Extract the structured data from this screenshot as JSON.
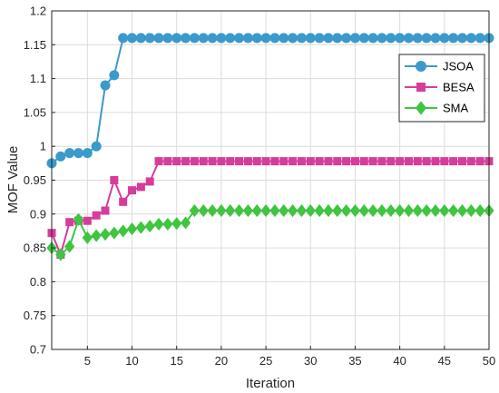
{
  "chart_data": {
    "type": "line",
    "xlabel": "Iteration",
    "ylabel": "MOF Value",
    "xlim": [
      1,
      50
    ],
    "ylim": [
      0.7,
      1.2
    ],
    "xticks": [
      5,
      10,
      15,
      20,
      25,
      30,
      35,
      40,
      45,
      50
    ],
    "yticks": [
      0.7,
      0.75,
      0.8,
      0.85,
      0.9,
      0.95,
      1,
      1.05,
      1.1,
      1.15,
      1.2
    ],
    "ytick_labels": [
      "0.7",
      "0.75",
      "0.8",
      "0.85",
      "0.9",
      "0.95",
      "1",
      "1.05",
      "1.1",
      "1.15",
      "1.2"
    ],
    "xtick_labels": [
      "5",
      "10",
      "15",
      "20",
      "25",
      "30",
      "35",
      "40",
      "45",
      "50"
    ],
    "grid": true,
    "legend_position": "top-right",
    "x": [
      1,
      2,
      3,
      4,
      5,
      6,
      7,
      8,
      9,
      10,
      11,
      12,
      13,
      14,
      15,
      16,
      17,
      18,
      19,
      20,
      21,
      22,
      23,
      24,
      25,
      26,
      27,
      28,
      29,
      30,
      31,
      32,
      33,
      34,
      35,
      36,
      37,
      38,
      39,
      40,
      41,
      42,
      43,
      44,
      45,
      46,
      47,
      48,
      49,
      50
    ],
    "series": [
      {
        "name": "JSOA",
        "color": "#3a9acb",
        "marker": "circle",
        "values": [
          0.975,
          0.985,
          0.99,
          0.99,
          0.99,
          1.0,
          1.09,
          1.105,
          1.16,
          1.16,
          1.16,
          1.16,
          1.16,
          1.16,
          1.16,
          1.16,
          1.16,
          1.16,
          1.16,
          1.16,
          1.16,
          1.16,
          1.16,
          1.16,
          1.16,
          1.16,
          1.16,
          1.16,
          1.16,
          1.16,
          1.16,
          1.16,
          1.16,
          1.16,
          1.16,
          1.16,
          1.16,
          1.16,
          1.16,
          1.16,
          1.16,
          1.16,
          1.16,
          1.16,
          1.16,
          1.16,
          1.16,
          1.16,
          1.16,
          1.16
        ]
      },
      {
        "name": "BESA",
        "color": "#d63d9a",
        "marker": "square",
        "values": [
          0.872,
          0.84,
          0.888,
          0.89,
          0.89,
          0.898,
          0.905,
          0.95,
          0.918,
          0.935,
          0.94,
          0.948,
          0.978,
          0.978,
          0.978,
          0.978,
          0.978,
          0.978,
          0.978,
          0.978,
          0.978,
          0.978,
          0.978,
          0.978,
          0.978,
          0.978,
          0.978,
          0.978,
          0.978,
          0.978,
          0.978,
          0.978,
          0.978,
          0.978,
          0.978,
          0.978,
          0.978,
          0.978,
          0.978,
          0.978,
          0.978,
          0.978,
          0.978,
          0.978,
          0.978,
          0.978,
          0.978,
          0.978,
          0.978,
          0.978
        ]
      },
      {
        "name": "SMA",
        "color": "#3fc540",
        "marker": "diamond",
        "values": [
          0.85,
          0.84,
          0.852,
          0.892,
          0.865,
          0.868,
          0.87,
          0.872,
          0.875,
          0.878,
          0.88,
          0.882,
          0.885,
          0.885,
          0.886,
          0.887,
          0.905,
          0.905,
          0.905,
          0.905,
          0.905,
          0.905,
          0.905,
          0.905,
          0.905,
          0.905,
          0.905,
          0.905,
          0.905,
          0.905,
          0.905,
          0.905,
          0.905,
          0.905,
          0.905,
          0.905,
          0.905,
          0.905,
          0.905,
          0.905,
          0.905,
          0.905,
          0.905,
          0.905,
          0.905,
          0.905,
          0.905,
          0.905,
          0.905,
          0.905
        ]
      }
    ]
  }
}
